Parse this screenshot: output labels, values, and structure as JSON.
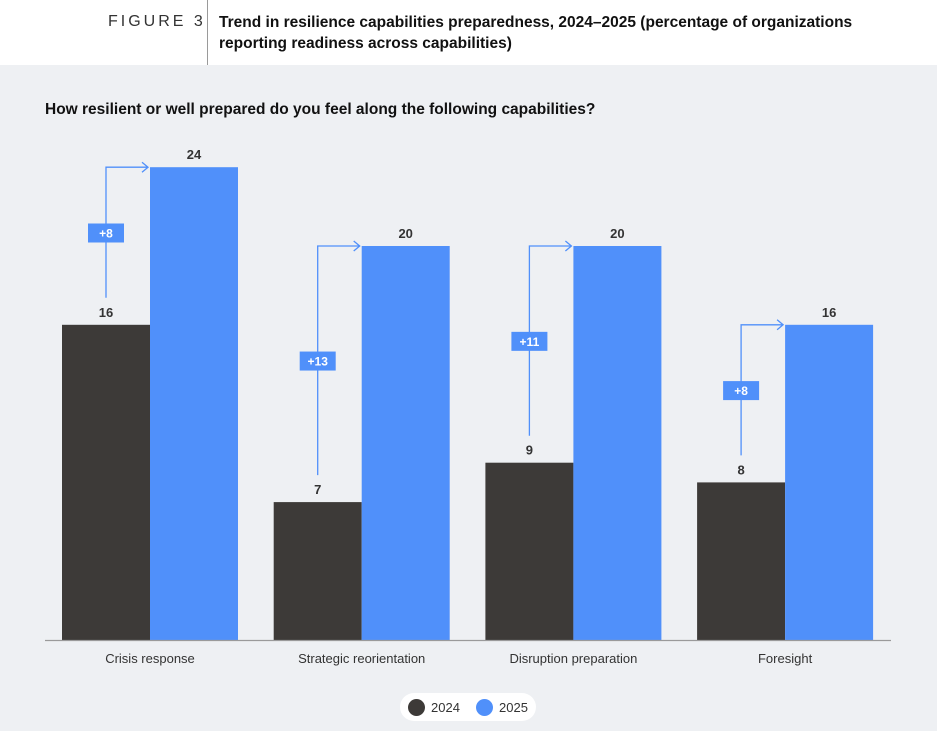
{
  "header": {
    "figure_label": "FIGURE 3",
    "title": "Trend in resilience capabilities preparedness, 2024–2025 (percentage of organizations reporting readiness across capabilities)"
  },
  "question": "How resilient or well prepared do you feel along the following capabilities?",
  "colors": {
    "y2024": "#3d3a38",
    "y2025": "#5090fa",
    "axis": "#9a9a9a"
  },
  "chart_data": {
    "type": "bar",
    "title": "How resilient or well prepared do you feel along the following capabilities?",
    "categories": [
      "Crisis response",
      "Strategic reorientation",
      "Disruption preparation",
      "Foresight"
    ],
    "series": [
      {
        "name": "2024",
        "values": [
          16,
          7,
          9,
          8
        ]
      },
      {
        "name": "2025",
        "values": [
          24,
          20,
          20,
          16
        ]
      }
    ],
    "changes": [
      "+8",
      "+13",
      "+11",
      "+8"
    ],
    "ylim": [
      0,
      24
    ],
    "xlabel": "",
    "ylabel": "",
    "legend": "bottom-center"
  },
  "legend": [
    {
      "label": "2024"
    },
    {
      "label": "2025"
    }
  ]
}
